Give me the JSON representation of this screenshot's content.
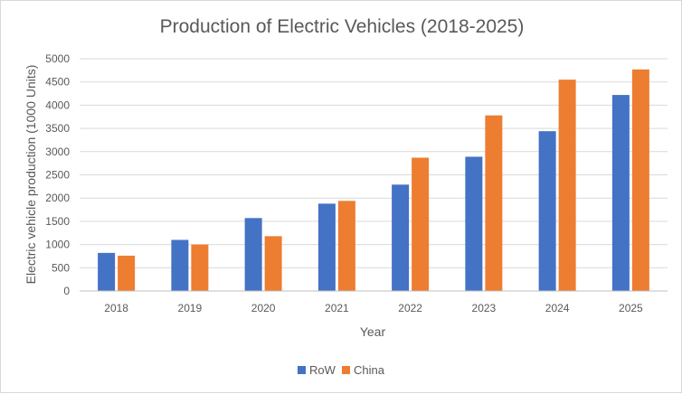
{
  "chart_data": {
    "type": "bar",
    "title": "Production of Electric Vehicles (2018-2025)",
    "xlabel": "Year",
    "ylabel": "Electric vehicle production (1000 Units)",
    "categories": [
      "2018",
      "2019",
      "2020",
      "2021",
      "2022",
      "2023",
      "2024",
      "2025"
    ],
    "series": [
      {
        "name": "RoW",
        "color": "#4472c4",
        "values": [
          820,
          1100,
          1570,
          1880,
          2290,
          2890,
          3440,
          4220
        ]
      },
      {
        "name": "China",
        "color": "#ed7d31",
        "values": [
          760,
          1000,
          1180,
          1940,
          2870,
          3780,
          4550,
          4770
        ]
      }
    ],
    "ylim": [
      0,
      5000
    ],
    "yticks": [
      0,
      500,
      1000,
      1500,
      2000,
      2500,
      3000,
      3500,
      4000,
      4500,
      5000
    ],
    "grid": true,
    "legend": "bottom"
  }
}
